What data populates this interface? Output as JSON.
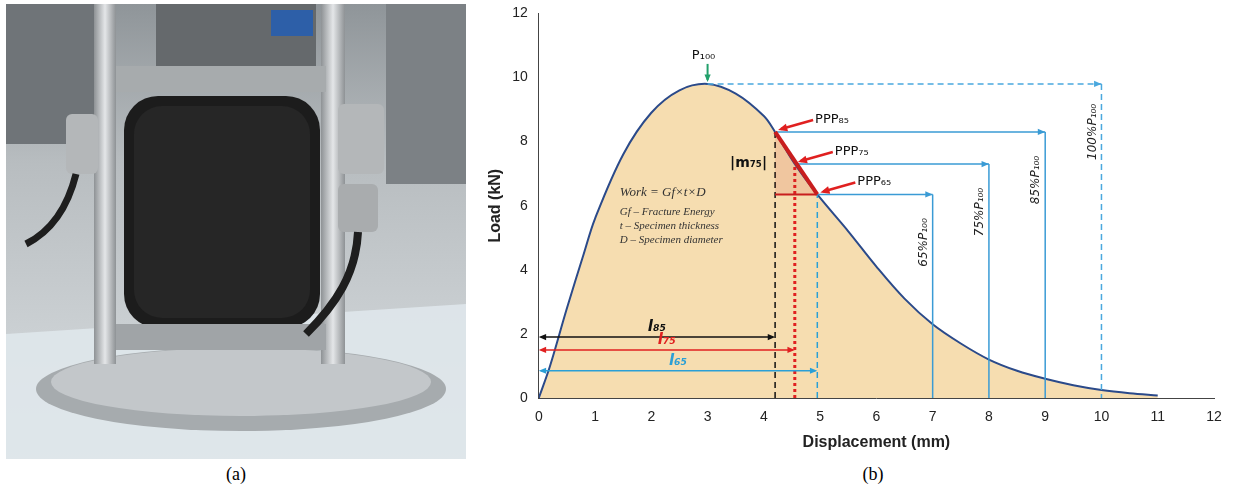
{
  "figure": {
    "panel_labels": [
      "(a)",
      "(b)"
    ]
  },
  "chart_data": {
    "type": "line",
    "x_label": "Displacement (mm)",
    "y_label": "Load (kN)",
    "x": [
      0,
      0.2,
      0.5,
      0.8,
      1,
      1.5,
      2,
      2.5,
      3,
      3.5,
      4,
      4.2,
      4.55,
      4.95,
      5.5,
      6,
      6.5,
      7,
      7.5,
      8,
      8.5,
      9,
      9.5,
      10,
      10.5,
      11
    ],
    "values": [
      0,
      1,
      2.8,
      4.5,
      5.6,
      7.6,
      8.9,
      9.6,
      9.8,
      9.5,
      8.8,
      8.3,
      7.3,
      6.35,
      5.2,
      4.1,
      3.1,
      2.3,
      1.7,
      1.2,
      0.85,
      0.6,
      0.4,
      0.25,
      0.15,
      0.08
    ],
    "color": "#2b4a8a",
    "xlim": [
      0,
      12
    ],
    "xticks": [
      0,
      1,
      2,
      3,
      4,
      5,
      6,
      7,
      8,
      9,
      10,
      11,
      12
    ],
    "ylim": [
      0,
      12
    ],
    "yticks": [
      0,
      2,
      4,
      6,
      8,
      10,
      12
    ],
    "grid": false,
    "annotations": {
      "formula": [
        "Work = Gf×t×D",
        "Gf – Fracture Energy",
        "t – Specimen thickness",
        "D – Specimen diameter"
      ],
      "points": [
        {
          "label": "P₁₀₀",
          "x": 3,
          "y": 9.8,
          "color": "#22a06b"
        },
        {
          "label": "PPP₈₅",
          "x": 4.2,
          "y": 8.3,
          "color": "#e02020"
        },
        {
          "label": "PPP₇₅",
          "x": 4.55,
          "y": 7.3,
          "color": "#e02020"
        },
        {
          "label": "PPP₆₅",
          "x": 4.95,
          "y": 6.35,
          "color": "#e02020"
        }
      ],
      "levels": [
        {
          "label": "100%P₁₀₀",
          "x_from": 3,
          "x_to": 10,
          "y": 9.8,
          "color": "#4aa8de",
          "line_style": "dashed"
        },
        {
          "label": "85%P₁₀₀",
          "x_from": 4.2,
          "x_to": 9,
          "y": 8.3,
          "color": "#3a9bd5",
          "line_style": "solid"
        },
        {
          "label": "75%P₁₀₀",
          "x_from": 4.55,
          "x_to": 8,
          "y": 7.3,
          "color": "#3a9bd5",
          "line_style": "solid"
        },
        {
          "label": "65%P₁₀₀",
          "x_from": 4.95,
          "x_to": 7,
          "y": 6.35,
          "color": "#3a9bd5",
          "line_style": "solid"
        }
      ],
      "lengths": [
        {
          "label": "l₈₅",
          "x": 4.2,
          "y": 1.9,
          "y_top": 8.3,
          "color": "#111111",
          "line_style": "dashed"
        },
        {
          "label": "l₇₅",
          "x": 4.55,
          "y": 1.5,
          "y_top": 7.3,
          "color": "#e02020",
          "line_style": "dotted"
        },
        {
          "label": "l₆₅",
          "x": 4.95,
          "y": 0.85,
          "y_top": 6.35,
          "color": "#2a9fd6",
          "line_style": "dashed"
        }
      ],
      "slope": {
        "label": "|m₇₅|",
        "from": [
          4.2,
          8.3
        ],
        "to": [
          4.95,
          6.35
        ],
        "color": "#c81e1e"
      }
    }
  }
}
